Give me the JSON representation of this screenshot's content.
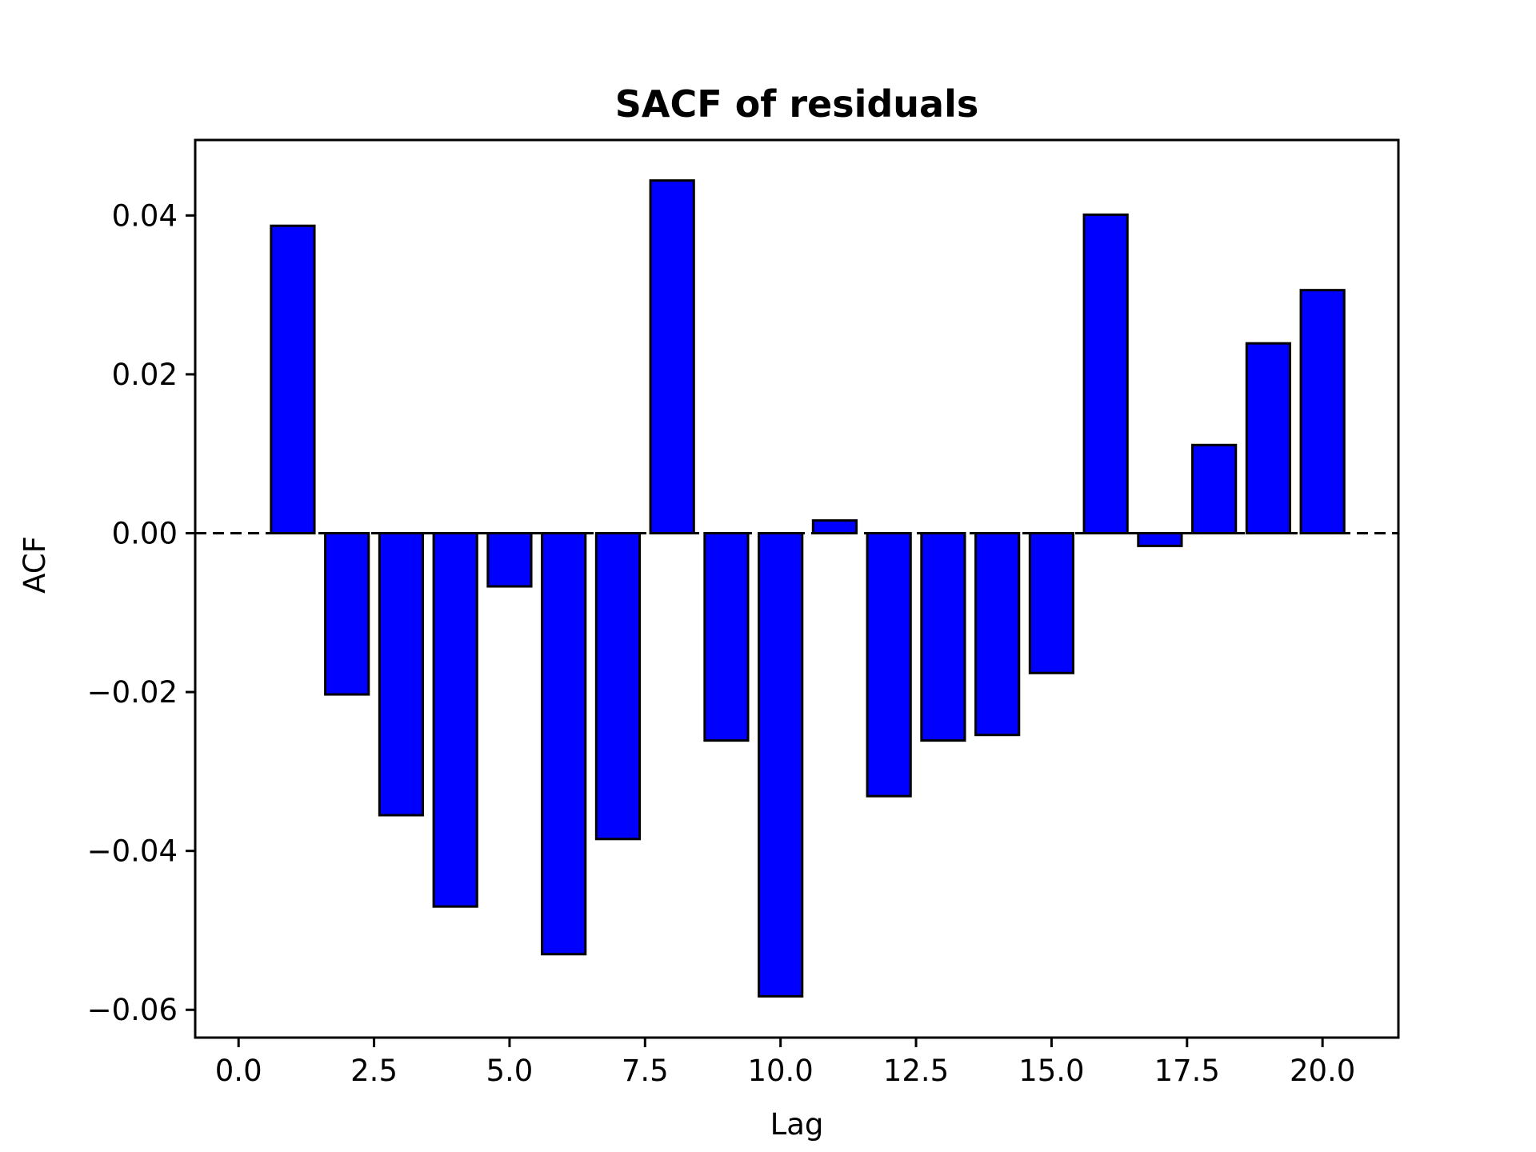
{
  "chart_data": {
    "type": "bar",
    "title": "SACF of residuals",
    "xlabel": "Lag",
    "ylabel": "ACF",
    "x": [
      1,
      2,
      3,
      4,
      5,
      6,
      7,
      8,
      9,
      10,
      11,
      12,
      13,
      14,
      15,
      16,
      17,
      18,
      19,
      20
    ],
    "values": [
      0.0387,
      -0.0203,
      -0.0355,
      -0.047,
      -0.0067,
      -0.053,
      -0.0385,
      0.0444,
      -0.0261,
      -0.0583,
      0.0016,
      -0.0331,
      -0.0261,
      -0.0254,
      -0.0176,
      0.0401,
      -0.0016,
      0.0111,
      0.0239,
      0.0306
    ],
    "xlim": [
      -0.8,
      21.4
    ],
    "ylim": [
      -0.0635,
      0.0495
    ],
    "xticks": [
      0,
      2.5,
      5,
      7.5,
      10,
      12.5,
      15,
      17.5,
      20
    ],
    "xtick_labels": [
      "0.0",
      "2.5",
      "5.0",
      "7.5",
      "10.0",
      "12.5",
      "15.0",
      "17.5",
      "20.0"
    ],
    "yticks": [
      -0.06,
      -0.04,
      -0.02,
      0,
      0.02,
      0.04
    ],
    "ytick_labels": [
      "−0.06",
      "−0.04",
      "−0.02",
      "0.00",
      "0.02",
      "0.04"
    ],
    "zero_line": "dashed",
    "grid": false,
    "bar_color": "#0000ff",
    "edge_color": "#000000"
  }
}
